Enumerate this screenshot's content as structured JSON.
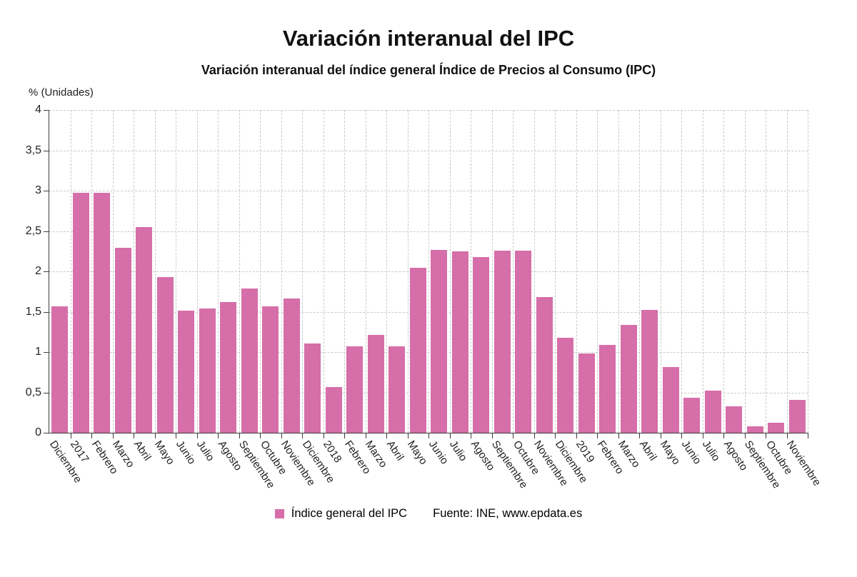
{
  "page": {
    "title": "Variación interanual del IPC",
    "subtitle": "Variación interanual del índice general Índice de Precios al Consumo (IPC)",
    "y_axis_unit": "% (Unidades)",
    "legend_label": "Índice general del IPC",
    "source": "Fuente: INE, www.epdata.es"
  },
  "chart_data": {
    "type": "bar",
    "title": "Variación interanual del IPC",
    "subtitle": "Variación interanual del índice general Índice de Precios al Consumo (IPC)",
    "ylabel": "% (Unidades)",
    "xlabel": "",
    "ylim": [
      0,
      4
    ],
    "ytick_step": 0.5,
    "grid": true,
    "legend_position": "bottom",
    "legend_entries": [
      "Índice general del IPC"
    ],
    "source": "Fuente: INE, www.epdata.es",
    "bar_color": "#d66ea9",
    "categories": [
      "Diciembre",
      "2017",
      "Febrero",
      "Marzo",
      "Abril",
      "Mayo",
      "Junio",
      "Julio",
      "Agosto",
      "Septiembre",
      "Octubre",
      "Noviembre",
      "Diciembre",
      "2018",
      "Febrero",
      "Marzo",
      "Abril",
      "Mayo",
      "Junio",
      "Julio",
      "Agosto",
      "Septiembre",
      "Octubre",
      "Noviembre",
      "Diciembre",
      "2019",
      "Febrero",
      "Marzo",
      "Abril",
      "Mayo",
      "Junio",
      "Julio",
      "Agosto",
      "Septiembre",
      "Octubre",
      "Noviembre"
    ],
    "values": [
      1.57,
      2.97,
      2.97,
      2.29,
      2.55,
      1.93,
      1.51,
      1.54,
      1.62,
      1.79,
      1.57,
      1.66,
      1.11,
      0.57,
      1.07,
      1.21,
      1.07,
      2.04,
      2.27,
      2.25,
      2.18,
      2.26,
      2.26,
      1.68,
      1.18,
      0.98,
      1.09,
      1.34,
      1.52,
      0.81,
      0.43,
      0.52,
      0.33,
      0.08,
      0.12,
      0.41
    ]
  }
}
